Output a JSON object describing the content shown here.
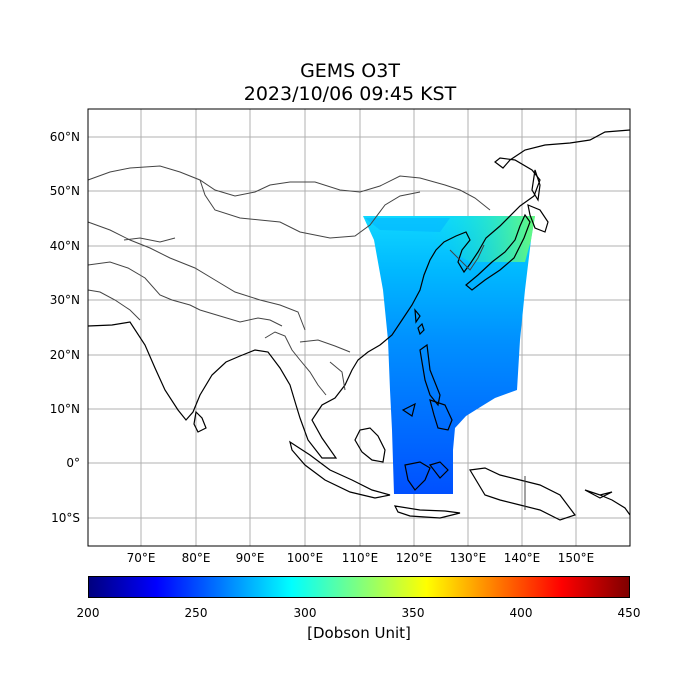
{
  "title_line1": "GEMS O3T",
  "title_line2": "2023/10/06 09:45 KST",
  "lat_labels": [
    "60°N",
    "50°N",
    "40°N",
    "30°N",
    "20°N",
    "10°N",
    "0°",
    "10°S"
  ],
  "lon_labels": [
    "70°E",
    "80°E",
    "90°E",
    "100°E",
    "110°E",
    "120°E",
    "130°E",
    "140°E",
    "150°E"
  ],
  "colorbar": {
    "ticks": [
      "200",
      "250",
      "300",
      "350",
      "400",
      "450"
    ],
    "label": "[Dobson Unit]",
    "colormap": "jet",
    "range": [
      200,
      450
    ]
  },
  "extent": {
    "lon": [
      60,
      160
    ],
    "lat": [
      -15,
      65
    ]
  },
  "gridlines": true
}
